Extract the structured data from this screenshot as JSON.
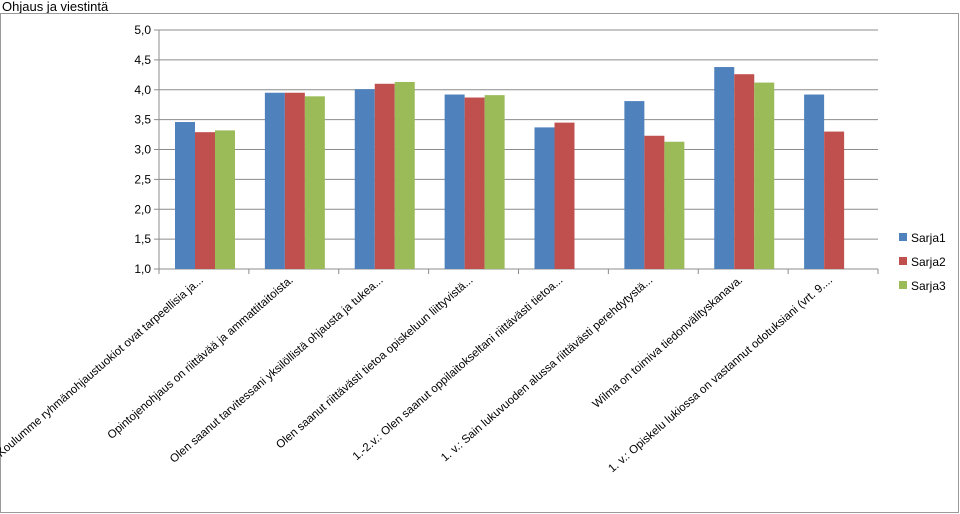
{
  "page": {
    "title": "Ohjaus ja viestintä"
  },
  "chart_data": {
    "type": "bar",
    "title": "",
    "xlabel": "",
    "ylabel": "",
    "ylim": [
      1.0,
      5.0
    ],
    "yticks": [
      "1,0",
      "1,5",
      "2,0",
      "2,5",
      "3,0",
      "3,5",
      "4,0",
      "4,5",
      "5,0"
    ],
    "grid": true,
    "legend_position": "right",
    "categories": [
      "Koulumme ryhmänohjaustuokiot ovat tarpeellisia ja...",
      "Opintojenohjaus on riittävää ja ammattitaitoista.",
      "Olen saanut tarvitessani yksilöllistä ohjausta ja tukea...",
      "Olen saanut riittävästi tietoa opiskeluun liittyvistä...",
      "1.-2.v.: Olen saanut oppilaitokseltani riittävästi tietoa...",
      "1. v.: Sain lukuvuoden alussa riittävästi perehdytystä...",
      "Wilma on toimiva tiedonvälityskanava.",
      "1. v.: Opiskelu lukiossa on vastannut odotuksiani (vrt. 9...."
    ],
    "series": [
      {
        "name": "Sarja1",
        "color": "#4F81BD",
        "values": [
          3.46,
          3.95,
          4.01,
          3.92,
          3.37,
          3.81,
          4.38,
          3.92
        ]
      },
      {
        "name": "Sarja2",
        "color": "#C0504D",
        "values": [
          3.29,
          3.95,
          4.1,
          3.87,
          3.45,
          3.23,
          4.26,
          3.3
        ]
      },
      {
        "name": "Sarja3",
        "color": "#9BBB59",
        "values": [
          3.32,
          3.89,
          4.13,
          3.91,
          null,
          3.13,
          4.12,
          null
        ]
      }
    ]
  }
}
